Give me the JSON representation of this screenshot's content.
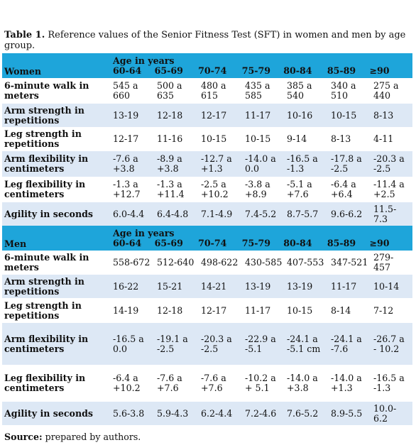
{
  "caption": {
    "label": "Table 1.",
    "text": " Reference values of the Senior Fitness Test (SFT) in women and men by age group."
  },
  "age_header": "Age in years",
  "age_groups": [
    "60-64",
    "65-69",
    "70-74",
    "75-79",
    "80-84",
    "85-89",
    "≥90"
  ],
  "women": {
    "title": "Women",
    "rows": [
      {
        "label": "6-minute walk in meters",
        "cells": [
          "545 a 660",
          "500 a 635",
          "480 a 615",
          "435 a 585",
          "385 a 540",
          "340 a 510",
          "275 a 440"
        ]
      },
      {
        "label": "Arm strength in repetitions",
        "cells": [
          "13-19",
          "12-18",
          "12-17",
          "11-17",
          "10-16",
          "10-15",
          "8-13"
        ]
      },
      {
        "label": "Leg strength in repetitions",
        "cells": [
          "12-17",
          "11-16",
          "10-15",
          "10-15",
          "9-14",
          "8-13",
          "4-11"
        ]
      },
      {
        "label": "Arm flexibility in centimeters",
        "cells": [
          "-7.6 a +3.8",
          "-8.9 a +3.8",
          "-12.7 a +1.3",
          "-14.0 a 0.0",
          "-16.5 a -1.3",
          "-17.8 a -2.5",
          "-20.3 a -2.5"
        ]
      },
      {
        "label": "Leg flexibility in centimeters",
        "cells": [
          "-1.3 a +12.7",
          "-1.3 a +11.4",
          "-2.5 a +10.2",
          "-3.8 a +8.9",
          "-5.1 a +7.6",
          "-6.4 a +6.4",
          "-11.4 a +2.5"
        ]
      },
      {
        "label": "Agility in seconds",
        "cells": [
          "6.0-4.4",
          "6.4-4.8",
          "7.1-4.9",
          "7.4-5.2",
          "8.7-5.7",
          "9.6-6.2",
          "11.5-7.3"
        ]
      }
    ]
  },
  "men": {
    "title": "Men",
    "rows": [
      {
        "label": "6-minute walk in meters",
        "cells": [
          "558-672",
          "512-640",
          "498-622",
          "430-585",
          "407-553",
          "347-521",
          "279-457"
        ]
      },
      {
        "label": "Arm strength in repetitions",
        "cells": [
          "16-22",
          "15-21",
          "14-21",
          "13-19",
          "13-19",
          "11-17",
          "10-14"
        ]
      },
      {
        "label": "Leg strength in repetitions",
        "cells": [
          "14-19",
          "12-18",
          "12-17",
          "11-17",
          "10-15",
          "8-14",
          "7-12"
        ]
      },
      {
        "label": "Arm flexibility in centimeters",
        "cells": [
          "-16.5 a 0.0",
          "-19.1 a -2.5",
          "-20.3 a -2.5",
          "-22.9 a -5.1",
          "-24.1 a -5.1 cm",
          "-24.1 a -7.6",
          "-26.7 a - 10.2"
        ]
      },
      {
        "label": "Leg flexibility in centimeters",
        "cells": [
          "-6.4 a +10.2",
          "-7.6 a +7.6",
          "-7.6 a +7.6",
          "-10.2 a + 5.1",
          "-14.0 a +3.8",
          "-14.0 a +1.3",
          "-16.5 a -1.3"
        ]
      },
      {
        "label": "Agility in seconds",
        "cells": [
          "5.6-3.8",
          "5.9-4.3",
          "6.2-4.4",
          "7.2-4.6",
          "7.6-5.2",
          "8.9-5.5",
          "10.0-6.2"
        ]
      }
    ]
  },
  "source": {
    "label": "Source:",
    "text": " prepared by authors."
  }
}
